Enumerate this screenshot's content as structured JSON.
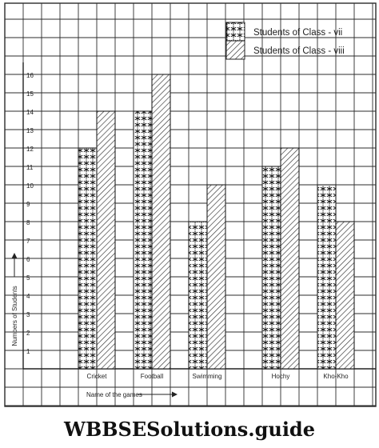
{
  "chart_data": {
    "type": "bar",
    "categories": [
      "Cricket",
      "Football",
      "Swimming",
      "Hochy",
      "Kho-Kho"
    ],
    "series": [
      {
        "name": "Students of Class - vii",
        "values": [
          12,
          14,
          8,
          11,
          10
        ],
        "pattern": "star"
      },
      {
        "name": "Students of Class - viii",
        "values": [
          14,
          16,
          10,
          12,
          8
        ],
        "pattern": "hatch"
      }
    ],
    "y_ticks": [
      "1",
      "2",
      "3",
      "4",
      "5",
      "6",
      "7",
      "8",
      "9",
      "10",
      "11",
      "12",
      "13",
      "14",
      "15",
      "16"
    ],
    "xlabel": "Name of the games",
    "ylabel": "Numbers of Students",
    "ylim": [
      0,
      16
    ],
    "grid": true,
    "legend_position": "top-right"
  },
  "footer": {
    "text": "WBBSESolutions.guide"
  },
  "colors": {
    "grid": "#2b2b2b",
    "ink": "#222222",
    "paper": "#ffffff"
  }
}
